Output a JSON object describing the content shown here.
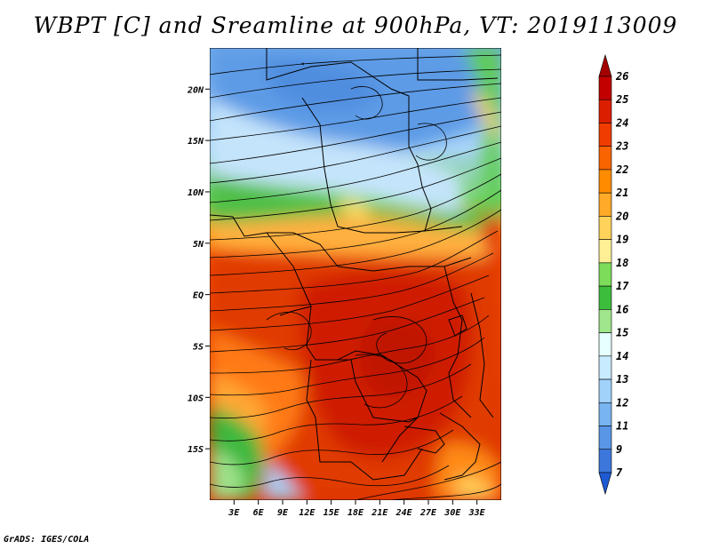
{
  "title": "WBPT [C] and Sreamline at 900hPa, VT: 2019113009",
  "credit": "GrADS: IGES/COLA",
  "map": {
    "lon_range": [
      0,
      36
    ],
    "lat_range": [
      -20,
      24
    ],
    "x_ticks": [
      "3E",
      "6E",
      "9E",
      "12E",
      "15E",
      "18E",
      "21E",
      "24E",
      "27E",
      "30E",
      "33E"
    ],
    "x_tick_values": [
      3,
      6,
      9,
      12,
      15,
      18,
      21,
      24,
      27,
      30,
      33
    ],
    "y_ticks": [
      "20N",
      "15N",
      "10N",
      "5N",
      "EQ",
      "5S",
      "10S",
      "15S"
    ],
    "y_tick_values": [
      20,
      15,
      10,
      5,
      0,
      -5,
      -10,
      -15
    ]
  },
  "colorbar": {
    "labels": [
      "26",
      "25",
      "24",
      "23",
      "22",
      "21",
      "20",
      "19",
      "18",
      "17",
      "16",
      "15",
      "14",
      "13",
      "12",
      "11",
      "9",
      "7"
    ],
    "colors": [
      "#a50000",
      "#c30000",
      "#dc1e00",
      "#f03c00",
      "#fa6400",
      "#ff8c00",
      "#ffaa28",
      "#ffd25a",
      "#fff096",
      "#7ddc5a",
      "#3cbe3c",
      "#a0e68c",
      "#e6ffff",
      "#c8ebff",
      "#a0d2fa",
      "#78b4f0",
      "#5a96e6",
      "#3c78dc",
      "#1e5ad2"
    ]
  }
}
